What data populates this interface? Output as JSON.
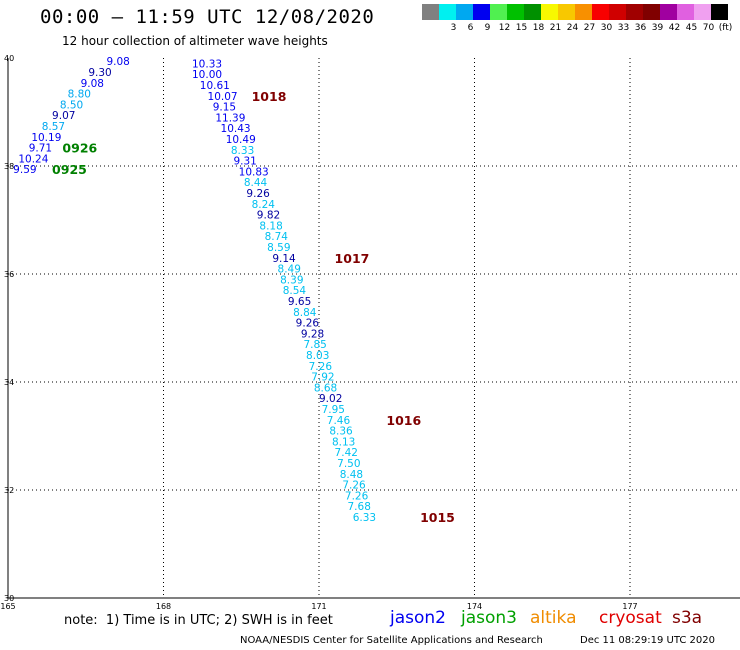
{
  "header": {
    "title": "00:00 – 11:59 UTC 12/08/2020",
    "subtitle": "12 hour collection of altimeter wave heights"
  },
  "scale": {
    "colors": [
      "#808080",
      "#00f0f0",
      "#00a8f0",
      "#0000f0",
      "#50f050",
      "#00c000",
      "#009000",
      "#f8f800",
      "#f8c800",
      "#f89000",
      "#f80000",
      "#d00000",
      "#a00000",
      "#800000",
      "#a000a0",
      "#e060e0",
      "#f0a0f0",
      "#000000"
    ],
    "labels": [
      "",
      "3",
      "6",
      "9",
      "12",
      "15",
      "18",
      "21",
      "24",
      "27",
      "30",
      "33",
      "36",
      "39",
      "42",
      "45",
      "70",
      "(ft)"
    ]
  },
  "chart_data": {
    "type": "scatter",
    "x_label_ticks": [
      "165",
      "168",
      "171",
      "174",
      "177"
    ],
    "y_label_ticks": [
      "30",
      "32",
      "34",
      "36",
      "38",
      "40"
    ],
    "xlim": [
      165,
      179
    ],
    "ylim": [
      30,
      40
    ],
    "points": [
      {
        "lon": 166.9,
        "lat": 39.94,
        "v": "9.08",
        "c": "#0000f0"
      },
      {
        "lon": 166.55,
        "lat": 39.74,
        "v": "9.30",
        "c": "#0000a0"
      },
      {
        "lon": 166.4,
        "lat": 39.54,
        "v": "9.08",
        "c": "#0000f0"
      },
      {
        "lon": 166.15,
        "lat": 39.34,
        "v": "8.80",
        "c": "#00a8f0"
      },
      {
        "lon": 166.0,
        "lat": 39.14,
        "v": "8.50",
        "c": "#00a8f0"
      },
      {
        "lon": 165.85,
        "lat": 38.94,
        "v": "9.07",
        "c": "#0000a0"
      },
      {
        "lon": 165.65,
        "lat": 38.74,
        "v": "8.57",
        "c": "#00a8f0"
      },
      {
        "lon": 165.45,
        "lat": 38.54,
        "v": "10.19",
        "c": "#0000f0"
      },
      {
        "lon": 165.4,
        "lat": 38.34,
        "v": "9.71",
        "c": "#0000f0"
      },
      {
        "lon": 165.2,
        "lat": 38.14,
        "v": "10.24",
        "c": "#0000f0"
      },
      {
        "lon": 165.1,
        "lat": 37.94,
        "v": "9.59",
        "c": "#0000f0"
      },
      {
        "lon": 168.55,
        "lat": 39.9,
        "v": "10.33",
        "c": "#0000f0"
      },
      {
        "lon": 168.55,
        "lat": 39.7,
        "v": "10.00",
        "c": "#0000f0"
      },
      {
        "lon": 168.7,
        "lat": 39.5,
        "v": "10.61",
        "c": "#0000f0"
      },
      {
        "lon": 168.85,
        "lat": 39.3,
        "v": "10.07",
        "c": "#0000f0"
      },
      {
        "lon": 168.95,
        "lat": 39.1,
        "v": "9.15",
        "c": "#0000f0"
      },
      {
        "lon": 169.0,
        "lat": 38.9,
        "v": "11.39",
        "c": "#0000f0"
      },
      {
        "lon": 169.1,
        "lat": 38.7,
        "v": "10.43",
        "c": "#0000f0"
      },
      {
        "lon": 169.2,
        "lat": 38.5,
        "v": "10.49",
        "c": "#0000f0"
      },
      {
        "lon": 169.3,
        "lat": 38.3,
        "v": "8.33",
        "c": "#00c0f0"
      },
      {
        "lon": 169.35,
        "lat": 38.1,
        "v": "9.31",
        "c": "#0000f0"
      },
      {
        "lon": 169.45,
        "lat": 37.9,
        "v": "10.83",
        "c": "#0000f0"
      },
      {
        "lon": 169.55,
        "lat": 37.7,
        "v": "8.44",
        "c": "#00c0f0"
      },
      {
        "lon": 169.6,
        "lat": 37.5,
        "v": "9.26",
        "c": "#0000a0"
      },
      {
        "lon": 169.7,
        "lat": 37.3,
        "v": "8.24",
        "c": "#00c0f0"
      },
      {
        "lon": 169.8,
        "lat": 37.1,
        "v": "9.82",
        "c": "#0000a0"
      },
      {
        "lon": 169.85,
        "lat": 36.9,
        "v": "8.18",
        "c": "#00c0f0"
      },
      {
        "lon": 169.95,
        "lat": 36.7,
        "v": "8.74",
        "c": "#00c0f0"
      },
      {
        "lon": 170.0,
        "lat": 36.5,
        "v": "8.59",
        "c": "#00c0f0"
      },
      {
        "lon": 170.1,
        "lat": 36.3,
        "v": "9.14",
        "c": "#0000a0"
      },
      {
        "lon": 170.2,
        "lat": 36.1,
        "v": "8.49",
        "c": "#00c0f0"
      },
      {
        "lon": 170.25,
        "lat": 35.9,
        "v": "8.39",
        "c": "#00c0f0"
      },
      {
        "lon": 170.3,
        "lat": 35.7,
        "v": "8.54",
        "c": "#00c0f0"
      },
      {
        "lon": 170.4,
        "lat": 35.5,
        "v": "9.65",
        "c": "#0000a0"
      },
      {
        "lon": 170.5,
        "lat": 35.3,
        "v": "8.84",
        "c": "#00c0f0"
      },
      {
        "lon": 170.55,
        "lat": 35.1,
        "v": "9.26",
        "c": "#0000a0"
      },
      {
        "lon": 170.65,
        "lat": 34.9,
        "v": "9.28",
        "c": "#0000a0"
      },
      {
        "lon": 170.7,
        "lat": 34.7,
        "v": "7.85",
        "c": "#00c0f0"
      },
      {
        "lon": 170.75,
        "lat": 34.5,
        "v": "8.03",
        "c": "#00c0f0"
      },
      {
        "lon": 170.8,
        "lat": 34.3,
        "v": "7.26",
        "c": "#00c0f0"
      },
      {
        "lon": 170.85,
        "lat": 34.1,
        "v": "7.92",
        "c": "#00c0f0"
      },
      {
        "lon": 170.9,
        "lat": 33.9,
        "v": "8.68",
        "c": "#00c0f0"
      },
      {
        "lon": 171.0,
        "lat": 33.7,
        "v": "9.02",
        "c": "#0000a0"
      },
      {
        "lon": 171.05,
        "lat": 33.5,
        "v": "7.95",
        "c": "#00c0f0"
      },
      {
        "lon": 171.15,
        "lat": 33.3,
        "v": "7.46",
        "c": "#00c0f0"
      },
      {
        "lon": 171.2,
        "lat": 33.1,
        "v": "8.36",
        "c": "#00c0f0"
      },
      {
        "lon": 171.25,
        "lat": 32.9,
        "v": "8.13",
        "c": "#00c0f0"
      },
      {
        "lon": 171.3,
        "lat": 32.7,
        "v": "7.42",
        "c": "#00c0f0"
      },
      {
        "lon": 171.35,
        "lat": 32.5,
        "v": "7.50",
        "c": "#00c0f0"
      },
      {
        "lon": 171.4,
        "lat": 32.3,
        "v": "8.48",
        "c": "#00c0f0"
      },
      {
        "lon": 171.45,
        "lat": 32.1,
        "v": "7.26",
        "c": "#00c0f0"
      },
      {
        "lon": 171.5,
        "lat": 31.9,
        "v": "7.26",
        "c": "#00c0f0"
      },
      {
        "lon": 171.55,
        "lat": 31.7,
        "v": "7.68",
        "c": "#00c0f0"
      },
      {
        "lon": 171.65,
        "lat": 31.5,
        "v": "6.33",
        "c": "#00c0f0"
      }
    ],
    "time_labels": [
      {
        "lon": 169.7,
        "lat": 39.3,
        "t": "1018",
        "c": "#800000"
      },
      {
        "lon": 166.05,
        "lat": 38.34,
        "t": "0926",
        "c": "#008000"
      },
      {
        "lon": 165.85,
        "lat": 37.94,
        "t": "0925",
        "c": "#008000"
      },
      {
        "lon": 171.3,
        "lat": 36.3,
        "t": "1017",
        "c": "#800000"
      },
      {
        "lon": 172.3,
        "lat": 33.3,
        "t": "1016",
        "c": "#800000"
      },
      {
        "lon": 172.95,
        "lat": 31.5,
        "t": "1015",
        "c": "#800000"
      }
    ]
  },
  "footer": {
    "note": "note:  1) Time is in UTC; 2) SWH is in feet",
    "satellites": [
      {
        "name": "jason2",
        "color": "#0000f0"
      },
      {
        "name": "jason3",
        "color": "#00a000"
      },
      {
        "name": "altika",
        "color": "#f08c00"
      },
      {
        "name": "cryosat",
        "color": "#e00000"
      },
      {
        "name": "s3a",
        "color": "#800000"
      }
    ],
    "credit": "NOAA/NESDIS Center for Satellite Applications and Research",
    "timestamp": "Dec 11 08:29:19 UTC 2020"
  }
}
